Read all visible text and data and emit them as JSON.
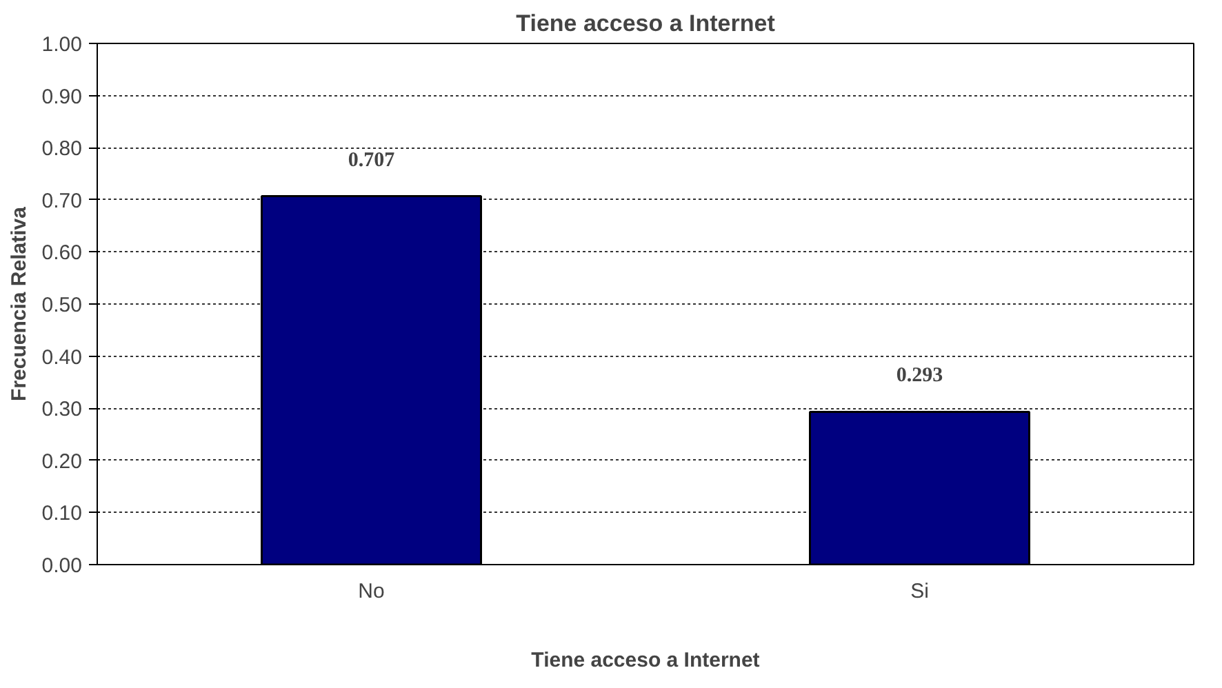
{
  "chart_data": {
    "type": "bar",
    "title": "Tiene acceso a Internet",
    "xlabel": "Tiene acceso a Internet",
    "ylabel": "Frecuencia Relativa",
    "categories": [
      "No",
      "Si"
    ],
    "values": [
      0.707,
      0.293
    ],
    "color": "#000080",
    "ylim": [
      0,
      1
    ],
    "yticks": [
      "0.00",
      "0.10",
      "0.20",
      "0.30",
      "0.40",
      "0.50",
      "0.60",
      "0.70",
      "0.80",
      "0.90",
      "1.00"
    ],
    "grid": "y",
    "data_labels": true
  }
}
